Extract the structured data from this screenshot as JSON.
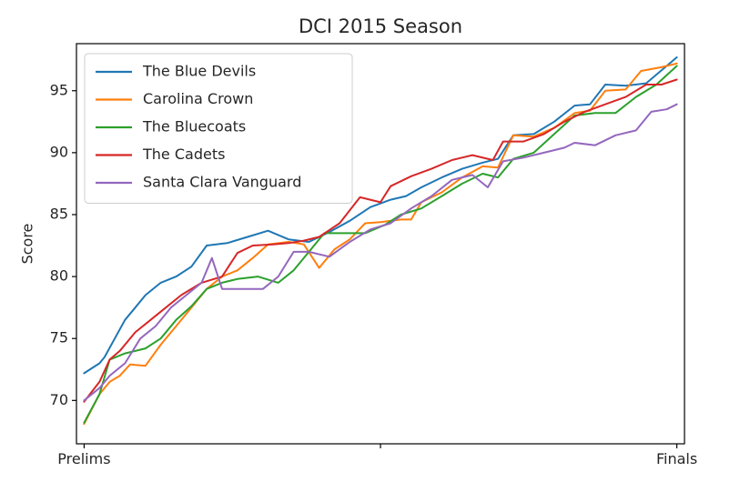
{
  "chart_data": {
    "type": "line",
    "title": "DCI 2015 Season",
    "xlabel": "",
    "ylabel": "Score",
    "x_tick_labels": [
      "Prelims",
      "",
      "Finals"
    ],
    "ylim": [
      66.5,
      98.8
    ],
    "y_ticks": [
      70,
      75,
      80,
      85,
      90,
      95
    ],
    "grid": false,
    "legend_position": "top-left",
    "series": [
      {
        "name": "The Blue Devils",
        "color": "#1f77b4",
        "values": [
          [
            0,
            72.2
          ],
          [
            3,
            73.0
          ],
          [
            4,
            73.5
          ],
          [
            6,
            75.0
          ],
          [
            8,
            76.5
          ],
          [
            10,
            77.5
          ],
          [
            12,
            78.5
          ],
          [
            15,
            79.5
          ],
          [
            18,
            80.0
          ],
          [
            21,
            80.8
          ],
          [
            24,
            82.5
          ],
          [
            28,
            82.7
          ],
          [
            32,
            83.2
          ],
          [
            36,
            83.7
          ],
          [
            40,
            83.0
          ],
          [
            44,
            82.8
          ],
          [
            48,
            83.6
          ],
          [
            52,
            84.5
          ],
          [
            56,
            85.6
          ],
          [
            60,
            86.2
          ],
          [
            63,
            86.5
          ],
          [
            66,
            87.2
          ],
          [
            70,
            88.0
          ],
          [
            74,
            88.7
          ],
          [
            78,
            89.2
          ],
          [
            81,
            89.5
          ],
          [
            84,
            91.4
          ],
          [
            88,
            91.5
          ],
          [
            92,
            92.5
          ],
          [
            96,
            93.8
          ],
          [
            99,
            93.9
          ],
          [
            102,
            95.5
          ],
          [
            106,
            95.4
          ],
          [
            110,
            95.6
          ],
          [
            116,
            97.7
          ]
        ]
      },
      {
        "name": "Carolina Crown",
        "color": "#ff7f0e",
        "values": [
          [
            0,
            68.1
          ],
          [
            3,
            70.5
          ],
          [
            5,
            71.5
          ],
          [
            7,
            72.0
          ],
          [
            9,
            72.9
          ],
          [
            12,
            72.8
          ],
          [
            15,
            74.5
          ],
          [
            18,
            76.0
          ],
          [
            21,
            77.5
          ],
          [
            24,
            79.0
          ],
          [
            27,
            80.0
          ],
          [
            30,
            80.5
          ],
          [
            33,
            81.5
          ],
          [
            36,
            82.6
          ],
          [
            40,
            82.8
          ],
          [
            43,
            82.6
          ],
          [
            46,
            80.7
          ],
          [
            49,
            82.2
          ],
          [
            52,
            83.0
          ],
          [
            55,
            84.3
          ],
          [
            58,
            84.4
          ],
          [
            62,
            84.6
          ],
          [
            64,
            84.6
          ],
          [
            66,
            86.0
          ],
          [
            70,
            86.8
          ],
          [
            74,
            88.0
          ],
          [
            78,
            88.9
          ],
          [
            81,
            88.8
          ],
          [
            84,
            91.4
          ],
          [
            88,
            91.3
          ],
          [
            92,
            92.0
          ],
          [
            96,
            93.2
          ],
          [
            99,
            93.4
          ],
          [
            102,
            95.0
          ],
          [
            106,
            95.1
          ],
          [
            109,
            96.6
          ],
          [
            113,
            96.9
          ],
          [
            116,
            97.2
          ]
        ]
      },
      {
        "name": "The Bluecoats",
        "color": "#2ca02c",
        "values": [
          [
            0,
            68.2
          ],
          [
            3,
            70.5
          ],
          [
            5,
            73.3
          ],
          [
            8,
            73.8
          ],
          [
            12,
            74.2
          ],
          [
            15,
            75.0
          ],
          [
            18,
            76.5
          ],
          [
            21,
            77.6
          ],
          [
            24,
            79.0
          ],
          [
            27,
            79.5
          ],
          [
            30,
            79.8
          ],
          [
            34,
            80.0
          ],
          [
            38,
            79.5
          ],
          [
            41,
            80.5
          ],
          [
            44,
            82.0
          ],
          [
            47,
            83.5
          ],
          [
            51,
            83.5
          ],
          [
            55,
            83.5
          ],
          [
            59,
            84.2
          ],
          [
            62,
            85.0
          ],
          [
            66,
            85.5
          ],
          [
            70,
            86.5
          ],
          [
            74,
            87.5
          ],
          [
            78,
            88.3
          ],
          [
            81,
            88.0
          ],
          [
            84,
            89.5
          ],
          [
            88,
            90.0
          ],
          [
            92,
            91.5
          ],
          [
            96,
            93.0
          ],
          [
            100,
            93.2
          ],
          [
            104,
            93.2
          ],
          [
            108,
            94.5
          ],
          [
            112,
            95.5
          ],
          [
            116,
            97.0
          ]
        ]
      },
      {
        "name": "The Cadets",
        "color": "#d62728",
        "values": [
          [
            0,
            69.9
          ],
          [
            3,
            71.5
          ],
          [
            5,
            73.3
          ],
          [
            7,
            74.0
          ],
          [
            10,
            75.5
          ],
          [
            13,
            76.5
          ],
          [
            16,
            77.5
          ],
          [
            19,
            78.5
          ],
          [
            23,
            79.5
          ],
          [
            27,
            80.0
          ],
          [
            30,
            81.9
          ],
          [
            33,
            82.5
          ],
          [
            37,
            82.6
          ],
          [
            40,
            82.7
          ],
          [
            43,
            82.9
          ],
          [
            46,
            83.2
          ],
          [
            50,
            84.3
          ],
          [
            54,
            86.4
          ],
          [
            58,
            86.0
          ],
          [
            60,
            87.3
          ],
          [
            64,
            88.1
          ],
          [
            68,
            88.7
          ],
          [
            72,
            89.4
          ],
          [
            76,
            89.8
          ],
          [
            80,
            89.4
          ],
          [
            82,
            90.9
          ],
          [
            86,
            90.9
          ],
          [
            90,
            91.5
          ],
          [
            94,
            92.5
          ],
          [
            98,
            93.3
          ],
          [
            102,
            93.9
          ],
          [
            106,
            94.5
          ],
          [
            110,
            95.5
          ],
          [
            113,
            95.5
          ],
          [
            116,
            95.9
          ]
        ]
      },
      {
        "name": "Santa Clara Vanguard",
        "color": "#9467bd",
        "values": [
          [
            0,
            70.0
          ],
          [
            3,
            71.0
          ],
          [
            5,
            72.0
          ],
          [
            8,
            73.0
          ],
          [
            11,
            75.0
          ],
          [
            14,
            76.0
          ],
          [
            17,
            77.5
          ],
          [
            20,
            78.5
          ],
          [
            23,
            79.5
          ],
          [
            25,
            81.5
          ],
          [
            27,
            79.0
          ],
          [
            31,
            79.0
          ],
          [
            35,
            79.0
          ],
          [
            38,
            80.0
          ],
          [
            41,
            82.0
          ],
          [
            44,
            82.0
          ],
          [
            48,
            81.6
          ],
          [
            52,
            82.8
          ],
          [
            56,
            83.8
          ],
          [
            60,
            84.3
          ],
          [
            64,
            85.5
          ],
          [
            68,
            86.5
          ],
          [
            72,
            87.8
          ],
          [
            76,
            88.2
          ],
          [
            79,
            87.2
          ],
          [
            82,
            89.3
          ],
          [
            86,
            89.6
          ],
          [
            90,
            90.0
          ],
          [
            94,
            90.4
          ],
          [
            96,
            90.8
          ],
          [
            100,
            90.6
          ],
          [
            104,
            91.4
          ],
          [
            108,
            91.8
          ],
          [
            111,
            93.3
          ],
          [
            114,
            93.5
          ],
          [
            116,
            93.9
          ]
        ]
      }
    ]
  }
}
